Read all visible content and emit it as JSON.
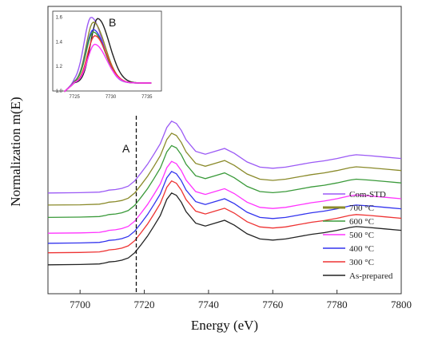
{
  "chart_data": {
    "type": "line",
    "xlabel": "Energy (eV)",
    "ylabel": "Normalization m(E)",
    "xlim": [
      7690,
      7800
    ],
    "xticks": [
      "7700",
      "7720",
      "7740",
      "7760",
      "7780",
      "7800"
    ],
    "legend_position": "bottom-right",
    "annotations": {
      "A": "A",
      "B": "B",
      "A_energy": 7717.5
    },
    "series": [
      {
        "name": "Com-STD",
        "color": "#9b59f5",
        "offset": 3.2
      },
      {
        "name": "700 °C",
        "color": "#8a8a2a",
        "offset": 2.78
      },
      {
        "name": "600 °C",
        "color": "#3a9a3a",
        "offset": 2.35
      },
      {
        "name": "500 °C",
        "color": "#ff33ff",
        "offset": 1.8
      },
      {
        "name": "400 °C",
        "color": "#3333ee",
        "offset": 1.45
      },
      {
        "name": "300 °C",
        "color": "#ee3333",
        "offset": 1.12
      },
      {
        "name": "As-prepared",
        "color": "#222222",
        "offset": 0.7
      }
    ],
    "profile_x": [
      7690,
      7700,
      7706,
      7708,
      7709,
      7711,
      7713,
      7715,
      7717,
      7719,
      7721,
      7723,
      7725,
      7726,
      7727,
      7728.5,
      7730,
      7731.5,
      7733,
      7736,
      7739,
      7742,
      7745,
      7748,
      7752,
      7756,
      7760,
      7764,
      7768,
      7772,
      7776,
      7780,
      7784,
      7786,
      7790,
      7795,
      7800
    ],
    "profile_y": [
      0.0,
      0.01,
      0.03,
      0.07,
      0.1,
      0.12,
      0.16,
      0.24,
      0.42,
      0.7,
      1.0,
      1.35,
      1.72,
      2.0,
      2.28,
      2.5,
      2.42,
      2.18,
      1.85,
      1.45,
      1.35,
      1.45,
      1.55,
      1.38,
      1.08,
      0.9,
      0.86,
      0.9,
      0.98,
      1.06,
      1.12,
      1.2,
      1.3,
      1.33,
      1.3,
      1.25,
      1.2
    ],
    "inset": {
      "xlim": [
        7722,
        7737
      ],
      "ylim": [
        1.0,
        1.65
      ],
      "xticks": [
        "7725",
        "7730",
        "7735"
      ],
      "yticks": [
        "1.0",
        "1.2",
        "1.4",
        "1.6"
      ],
      "peaks": [
        {
          "color": "#9b59f5",
          "peak_x": 7727.3,
          "peak_y": 1.6
        },
        {
          "color": "#222222",
          "peak_x": 7728.2,
          "peak_y": 1.59
        },
        {
          "color": "#8a8a2a",
          "peak_x": 7727.6,
          "peak_y": 1.56
        },
        {
          "color": "#3333ee",
          "peak_x": 7727.6,
          "peak_y": 1.5
        },
        {
          "color": "#3a9a3a",
          "peak_x": 7727.6,
          "peak_y": 1.48
        },
        {
          "color": "#ee3333",
          "peak_x": 7727.8,
          "peak_y": 1.45
        },
        {
          "color": "#ff33ff",
          "peak_x": 7727.8,
          "peak_y": 1.38
        }
      ]
    }
  }
}
